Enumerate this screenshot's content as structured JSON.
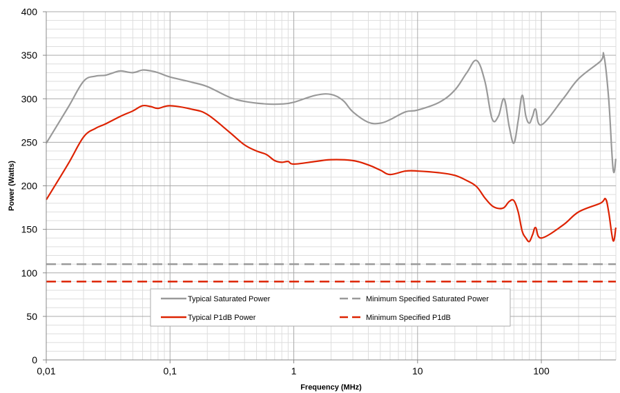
{
  "chart_data": {
    "type": "line",
    "title": "",
    "xlabel": "Frequency (MHz)",
    "ylabel": "Power (Watts)",
    "x_scale": "log",
    "xlim": [
      0.01,
      400
    ],
    "ylim": [
      0,
      400
    ],
    "x_ticks": [
      0.01,
      0.1,
      1,
      10,
      100
    ],
    "x_tick_labels": [
      "0,01",
      "0,1",
      "1",
      "10",
      "100"
    ],
    "y_ticks": [
      0,
      50,
      100,
      150,
      200,
      250,
      300,
      350,
      400
    ],
    "y_tick_labels": [
      "0",
      "50",
      "100",
      "150",
      "200",
      "250",
      "300",
      "350",
      "400"
    ],
    "grid": true,
    "legend_position": "bottom-center",
    "series": [
      {
        "name": "Typical Saturated Power",
        "color": "#999999",
        "style": "solid",
        "x": [
          0.01,
          0.015,
          0.02,
          0.025,
          0.03,
          0.035,
          0.04,
          0.05,
          0.06,
          0.07,
          0.08,
          0.1,
          0.15,
          0.2,
          0.3,
          0.4,
          0.6,
          0.8,
          1,
          1.5,
          2,
          2.5,
          3,
          4,
          5,
          6,
          8,
          10,
          15,
          20,
          25,
          30,
          35,
          40,
          45,
          50,
          55,
          60,
          65,
          70,
          75,
          80,
          85,
          90,
          100,
          150,
          200,
          300,
          320,
          350,
          380,
          400
        ],
        "values": [
          249,
          290,
          320,
          326,
          327,
          330,
          332,
          330,
          333,
          332,
          330,
          325,
          319,
          314,
          302,
          297,
          294,
          294,
          296,
          304,
          305,
          298,
          285,
          273,
          272,
          276,
          285,
          287,
          296,
          310,
          330,
          344,
          320,
          277,
          280,
          300,
          268,
          249,
          275,
          304,
          280,
          272,
          280,
          288,
          270,
          300,
          323,
          343,
          350,
          300,
          219,
          231
        ]
      },
      {
        "name": "Typical P1dB Power",
        "color": "#dd2200",
        "style": "solid",
        "x": [
          0.01,
          0.015,
          0.02,
          0.025,
          0.03,
          0.04,
          0.05,
          0.06,
          0.07,
          0.08,
          0.1,
          0.15,
          0.2,
          0.3,
          0.4,
          0.5,
          0.6,
          0.7,
          0.8,
          0.9,
          1,
          1.5,
          2,
          3,
          4,
          5,
          6,
          8,
          10,
          15,
          20,
          25,
          30,
          35,
          40,
          45,
          50,
          55,
          60,
          65,
          70,
          75,
          80,
          85,
          90,
          100,
          150,
          200,
          300,
          330,
          350,
          380,
          400
        ],
        "values": [
          184,
          225,
          256,
          266,
          271,
          280,
          286,
          292,
          291,
          289,
          292,
          288,
          282,
          262,
          247,
          240,
          236,
          229,
          227,
          228,
          225,
          228,
          230,
          229,
          224,
          218,
          213,
          217,
          217,
          215,
          212,
          206,
          199,
          186,
          177,
          174,
          175,
          182,
          183,
          170,
          148,
          140,
          136,
          144,
          152,
          140,
          155,
          170,
          180,
          185,
          170,
          137,
          152
        ]
      },
      {
        "name": "Minimum Specified Saturated Power",
        "color": "#999999",
        "style": "dashed",
        "x": [
          0.01,
          400
        ],
        "values": [
          110,
          110
        ]
      },
      {
        "name": "Minimum Specified P1dB",
        "color": "#dd2200",
        "style": "dashed",
        "x": [
          0.01,
          400
        ],
        "values": [
          90,
          90
        ]
      }
    ]
  },
  "legend": {
    "items": [
      {
        "label": "Typical Saturated Power",
        "color": "#999999",
        "style": "solid"
      },
      {
        "label": "Minimum Specified Saturated Power",
        "color": "#999999",
        "style": "dashed"
      },
      {
        "label": "Typical P1dB Power",
        "color": "#dd2200",
        "style": "solid"
      },
      {
        "label": "Minimum Specified P1dB",
        "color": "#dd2200",
        "style": "dashed"
      }
    ]
  },
  "colors": {
    "major_grid": "#aaaaaa",
    "minor_grid": "#dddddd",
    "axis": "#888888"
  }
}
